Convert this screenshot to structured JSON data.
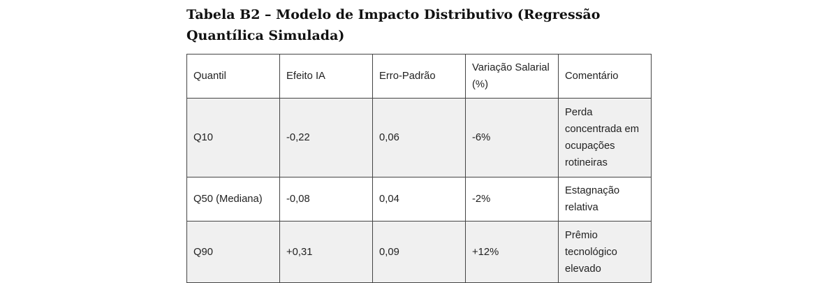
{
  "page": {
    "title": "Tabela B2 – Modelo de Impacto Distributivo (Regressão Quantílica Simulada)"
  },
  "table": {
    "columns": [
      "Quantil",
      "Efeito IA",
      "Erro-Padrão",
      "Variação Salarial (%)",
      "Comentário"
    ],
    "rows": [
      {
        "cells": [
          "Q10",
          "-0,22",
          "0,06",
          "-6%",
          "Perda concentrada em ocupações rotineiras"
        ]
      },
      {
        "cells": [
          "Q50 (Mediana)",
          "-0,08",
          "0,04",
          "-2%",
          "Estagnação relativa"
        ]
      },
      {
        "cells": [
          "Q90",
          "+0,31",
          "0,09",
          "+12%",
          "Prêmio tecnológico elevado"
        ]
      }
    ],
    "colors": {
      "stripe_background": "#f0f0f0",
      "border": "#444444",
      "text": "#222222"
    }
  }
}
